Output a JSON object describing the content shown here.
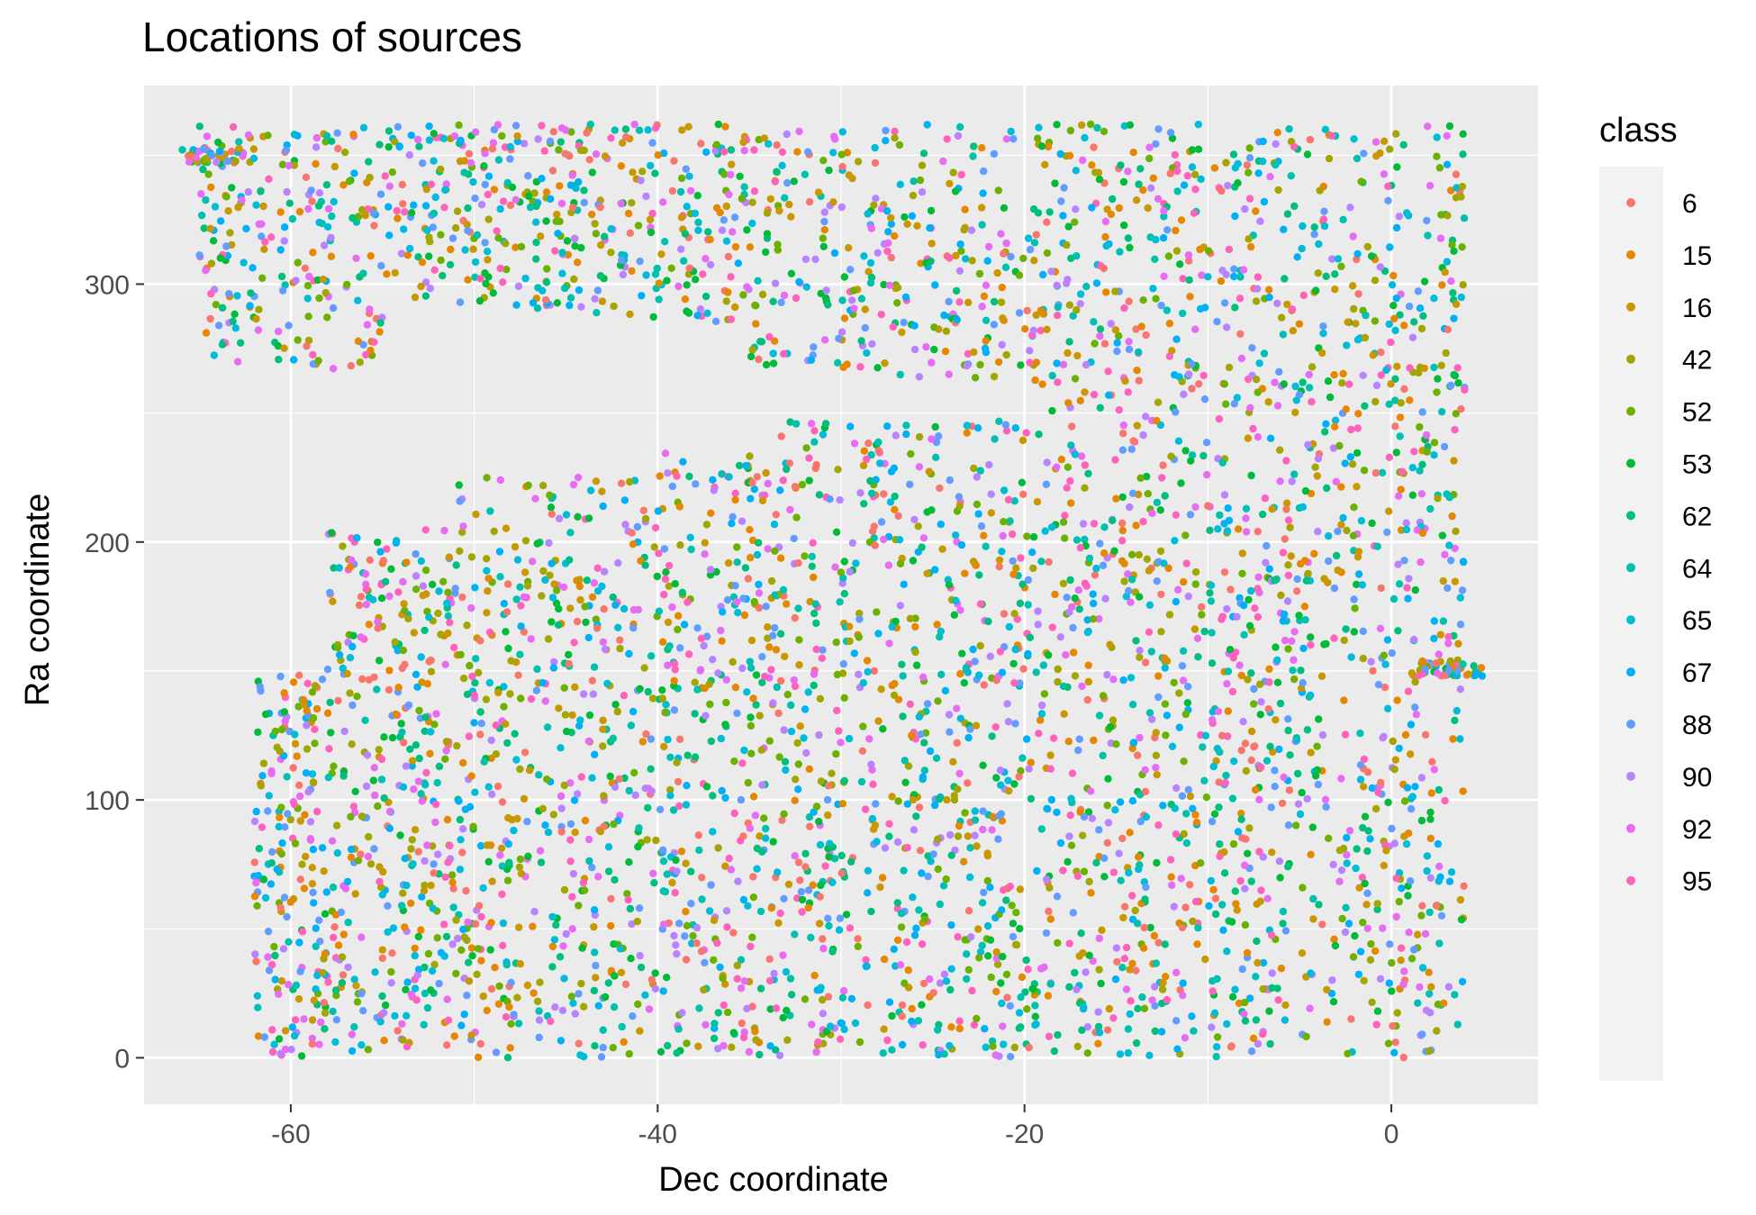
{
  "chart_data": {
    "type": "scatter",
    "title": "Locations of sources",
    "xlabel": "Dec coordinate",
    "ylabel": "Ra coordinate",
    "xlim": [
      -68,
      8
    ],
    "ylim": [
      -18,
      377
    ],
    "x_ticks": [
      -60,
      -40,
      -20,
      0
    ],
    "x_tick_labels": [
      "-60",
      "-40",
      "-20",
      "0"
    ],
    "y_ticks": [
      0,
      100,
      200,
      300
    ],
    "y_tick_labels": [
      "0",
      "100",
      "200",
      "300"
    ],
    "grid": true,
    "legend_position": "right",
    "legend": {
      "title": "class",
      "entries": [
        {
          "label": "6",
          "color": "#F8766D"
        },
        {
          "label": "15",
          "color": "#E58700"
        },
        {
          "label": "16",
          "color": "#C99800"
        },
        {
          "label": "42",
          "color": "#A3A500"
        },
        {
          "label": "52",
          "color": "#6BB100"
        },
        {
          "label": "53",
          "color": "#00BA38"
        },
        {
          "label": "62",
          "color": "#00BF7D"
        },
        {
          "label": "64",
          "color": "#00C0AF"
        },
        {
          "label": "65",
          "color": "#00BCD8"
        },
        {
          "label": "67",
          "color": "#00B0F6"
        },
        {
          "label": "88",
          "color": "#619CFF"
        },
        {
          "label": "90",
          "color": "#B983FF"
        },
        {
          "label": "92",
          "color": "#E76BF3"
        },
        {
          "label": "95",
          "color": "#FF62BC"
        }
      ]
    },
    "point_distribution": {
      "description_bands": [
        {
          "x_range": [
            -65,
            4
          ],
          "y_range": [
            260,
            362
          ],
          "approx_points": 1400
        },
        {
          "x_range": [
            -62,
            4
          ],
          "y_range": [
            0,
            270
          ],
          "approx_points": 3400
        }
      ],
      "clusters": [
        {
          "x": -64,
          "y": 350
        },
        {
          "x": 3,
          "y": 151
        }
      ]
    }
  },
  "colors": {
    "panel_background": "#EBEBEB",
    "grid_major": "#FFFFFF",
    "legend_key_background": "#F2F2F2"
  }
}
